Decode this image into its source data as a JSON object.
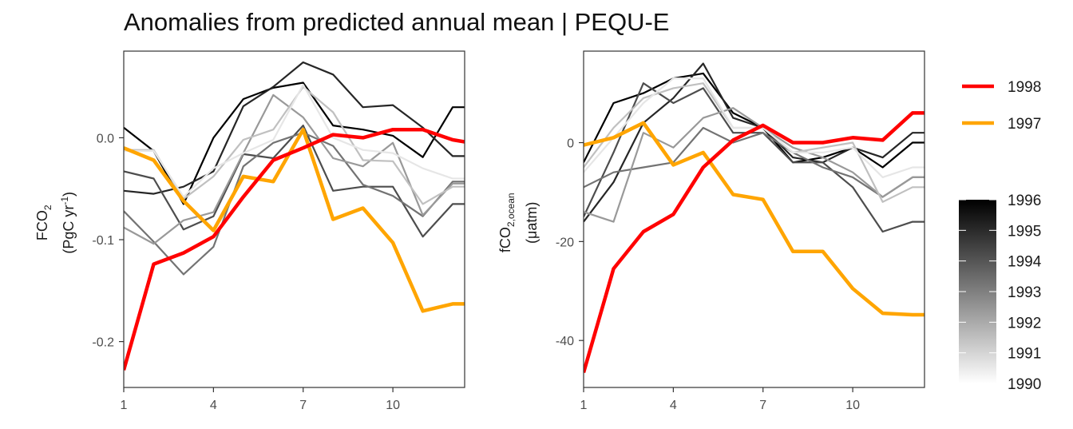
{
  "title": "Anomalies from predicted annual mean | PEQU-E",
  "chart_data": [
    {
      "type": "line",
      "ylabel_main": "FCO",
      "ylabel_sub": "2",
      "ylabel_unit_pre": "(PgC yr",
      "ylabel_unit_sup": "-1",
      "ylabel_unit_post": ")",
      "xlim": [
        1,
        12.4
      ],
      "ylim": [
        -0.245,
        0.085
      ],
      "x_ticks": [
        1,
        4,
        7,
        10
      ],
      "y_ticks": [
        -0.2,
        -0.1,
        0.0
      ],
      "y_tick_labels": [
        "-0.2",
        "-0.1",
        "0.0"
      ],
      "x": [
        1,
        2,
        3,
        4,
        5,
        6,
        7,
        8,
        9,
        10,
        11,
        12,
        12.4
      ],
      "background_series": [
        {
          "year": 1996,
          "values": [
            0.01,
            -0.013,
            -0.065,
            0.0,
            0.038,
            0.049,
            0.054,
            0.012,
            0.008,
            0.002,
            -0.019,
            0.03,
            0.03
          ]
        },
        {
          "year": 1995,
          "values": [
            -0.052,
            -0.055,
            -0.048,
            -0.033,
            0.031,
            0.05,
            0.074,
            0.062,
            0.03,
            0.032,
            0.01,
            -0.018,
            -0.018
          ]
        },
        {
          "year": 1994,
          "values": [
            -0.033,
            -0.04,
            -0.09,
            -0.077,
            -0.016,
            -0.02,
            0.012,
            -0.052,
            -0.048,
            -0.048,
            -0.097,
            -0.065,
            -0.065
          ]
        },
        {
          "year": 1993,
          "values": [
            -0.072,
            -0.102,
            -0.134,
            -0.107,
            -0.028,
            -0.005,
            0.005,
            -0.008,
            -0.046,
            -0.057,
            -0.077,
            -0.043,
            -0.043
          ]
        },
        {
          "year": 1992,
          "values": [
            -0.088,
            -0.104,
            -0.081,
            -0.073,
            -0.015,
            0.042,
            0.02,
            -0.02,
            -0.028,
            -0.005,
            -0.076,
            -0.045,
            -0.045
          ]
        },
        {
          "year": 1991,
          "values": [
            -0.012,
            -0.012,
            -0.06,
            -0.038,
            -0.002,
            0.008,
            0.05,
            0.025,
            -0.022,
            -0.023,
            -0.065,
            -0.048,
            -0.048
          ]
        },
        {
          "year": 1990,
          "values": [
            -0.013,
            -0.013,
            -0.058,
            -0.03,
            -0.015,
            -0.002,
            0.052,
            0.0,
            -0.012,
            -0.015,
            -0.03,
            -0.04,
            -0.04
          ]
        }
      ],
      "highlight_series": [
        {
          "name": "1997",
          "values": [
            -0.01,
            -0.022,
            -0.062,
            -0.091,
            -0.038,
            -0.043,
            0.008,
            -0.08,
            -0.069,
            -0.103,
            -0.17,
            -0.163,
            -0.163
          ]
        },
        {
          "name": "1998",
          "values": [
            -0.228,
            -0.124,
            -0.113,
            -0.097,
            -0.058,
            -0.022,
            -0.01,
            0.003,
            0.0,
            0.008,
            0.008,
            -0.002,
            -0.004
          ]
        }
      ]
    },
    {
      "type": "line",
      "ylabel_main": "fCO",
      "ylabel_sub": "2,ocean",
      "ylabel_unit_pre": "(μatm)",
      "ylabel_unit_sup": "",
      "ylabel_unit_post": "",
      "xlim": [
        1,
        12.4
      ],
      "ylim": [
        -49.5,
        18.5
      ],
      "x_ticks": [
        1,
        4,
        7,
        10
      ],
      "y_ticks": [
        -40,
        -20,
        0
      ],
      "y_tick_labels": [
        "-40",
        "-20",
        "0"
      ],
      "x": [
        1,
        2,
        3,
        4,
        5,
        6,
        7,
        8,
        9,
        10,
        11,
        12,
        12.4
      ],
      "background_series": [
        {
          "year": 1996,
          "values": [
            -4,
            8,
            10,
            13,
            14,
            6,
            3,
            -4,
            -3,
            -1,
            -5,
            0,
            0
          ]
        },
        {
          "year": 1995,
          "values": [
            -16,
            -8,
            4,
            9,
            16,
            5,
            3,
            -3,
            -4,
            -1,
            -3,
            2,
            2
          ]
        },
        {
          "year": 1994,
          "values": [
            -15,
            -2,
            12,
            8,
            11,
            2,
            2,
            -4,
            -4,
            -9,
            -18,
            -16,
            -16
          ]
        },
        {
          "year": 1993,
          "values": [
            -9,
            -6,
            -5,
            -4,
            3,
            0,
            2,
            -2,
            -5,
            -7,
            -11,
            -7,
            -7
          ]
        },
        {
          "year": 1992,
          "values": [
            -14,
            -16,
            2,
            -1,
            5,
            7,
            3,
            -1,
            -3,
            -6,
            -11,
            -7,
            -7
          ]
        },
        {
          "year": 1991,
          "values": [
            -5,
            3,
            9,
            11,
            12,
            3,
            3,
            -2,
            -1,
            0,
            -12,
            -9,
            -9
          ]
        },
        {
          "year": 1990,
          "values": [
            -6,
            1,
            8,
            13,
            13,
            3,
            3,
            -2,
            -2,
            -1,
            -7,
            -5,
            -5
          ]
        }
      ],
      "highlight_series": [
        {
          "name": "1997",
          "values": [
            -0.5,
            1,
            4,
            -4.5,
            -2,
            -10.5,
            -11.5,
            -22,
            -22,
            -29.5,
            -34.5,
            -34.8,
            -34.8
          ]
        },
        {
          "name": "1998",
          "values": [
            -46.5,
            -25.5,
            -18,
            -14.5,
            -5,
            0.5,
            3.5,
            0,
            0,
            1,
            0.5,
            6,
            6
          ]
        }
      ]
    }
  ],
  "legend": {
    "highlight": [
      {
        "label": "1998",
        "color": "#ff0000"
      },
      {
        "label": "1997",
        "color": "#ffa500"
      }
    ],
    "colorbar": {
      "labels": [
        "1996",
        "1995",
        "1994",
        "1993",
        "1992",
        "1991",
        "1990"
      ],
      "min": 1990,
      "max": 1996,
      "color_low": "#ffffff",
      "color_high": "#000000"
    }
  }
}
